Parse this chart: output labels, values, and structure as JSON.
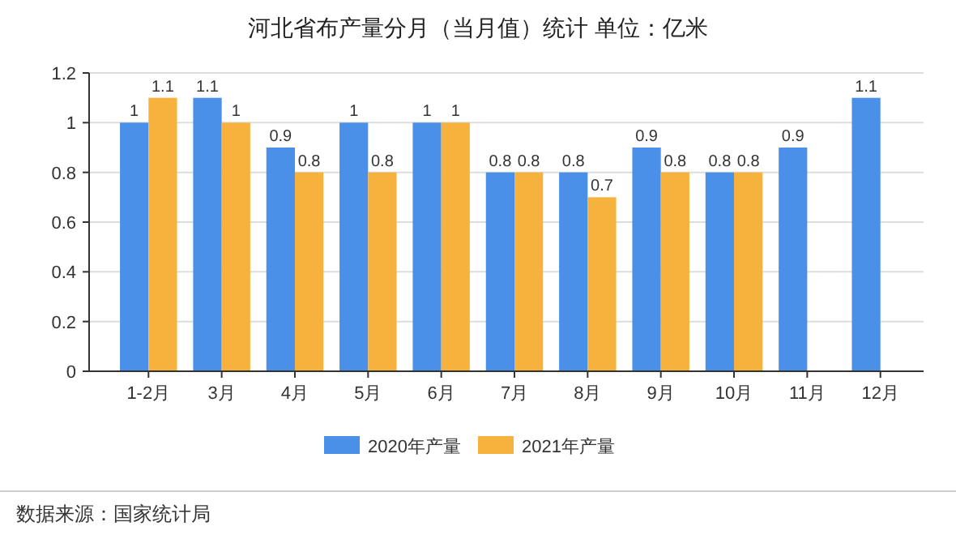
{
  "chart_data": {
    "type": "bar",
    "title": "河北省布产量分月（当月值）统计 单位：亿米",
    "categories": [
      "1-2月",
      "3月",
      "4月",
      "5月",
      "6月",
      "7月",
      "8月",
      "9月",
      "10月",
      "11月",
      "12月"
    ],
    "series": [
      {
        "name": "2020年产量",
        "color": "#4a8fe8",
        "values": [
          1,
          1.1,
          0.9,
          1,
          1,
          0.8,
          0.8,
          0.9,
          0.8,
          0.9,
          1.1
        ]
      },
      {
        "name": "2021年产量",
        "color": "#f7b23d",
        "values": [
          1.1,
          1,
          0.8,
          0.8,
          1,
          0.8,
          0.7,
          0.8,
          0.8,
          null,
          null
        ]
      }
    ],
    "ylim": [
      0,
      1.2
    ],
    "yticks": [
      0,
      0.2,
      0.4,
      0.6,
      0.8,
      1,
      1.2
    ],
    "grid": "y",
    "legend": "bottom",
    "data_labels": true,
    "annotations": [
      "数据来源：国家统计局"
    ]
  }
}
